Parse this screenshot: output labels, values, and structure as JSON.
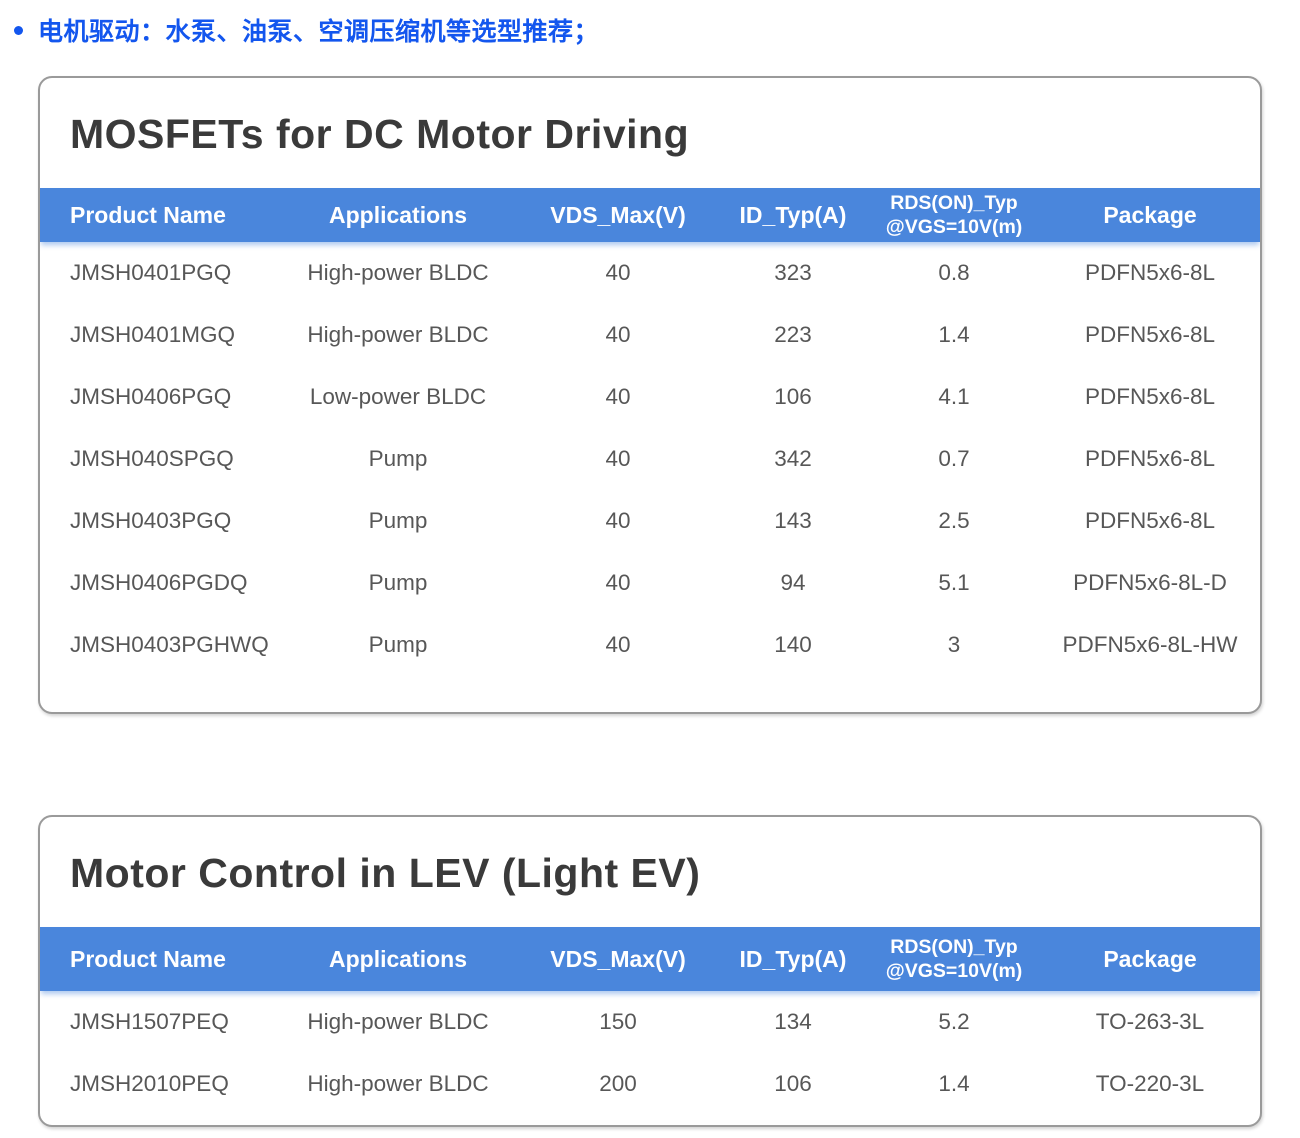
{
  "page": {
    "bullet_item": {
      "text": "电机驱动：水泵、油泵、空调压缩机等选型推荐；"
    },
    "colors": {
      "accent_blue": "#1356ee",
      "table_header_blue": "#4a86dc",
      "title_text": "#3a3a3a",
      "cell_text": "#575757"
    }
  },
  "tables": [
    {
      "title": "MOSFETs for DC Motor Driving",
      "columns": [
        {
          "label": "Product Name"
        },
        {
          "label": "Applications"
        },
        {
          "label": "VDS_Max(V)"
        },
        {
          "label": "ID_Typ(A)"
        },
        {
          "label": "RDS(ON)_Typ",
          "sublabel": "@VGS=10V(m)"
        },
        {
          "label": "Package"
        }
      ],
      "rows": [
        {
          "product": "JMSH0401PGQ",
          "application": "High-power BLDC",
          "vds_max_v": "40",
          "id_typ_a": "323",
          "rds_on_typ": "0.8",
          "package": "PDFN5x6-8L"
        },
        {
          "product": "JMSH0401MGQ",
          "application": "High-power BLDC",
          "vds_max_v": "40",
          "id_typ_a": "223",
          "rds_on_typ": "1.4",
          "package": "PDFN5x6-8L"
        },
        {
          "product": "JMSH0406PGQ",
          "application": "Low-power BLDC",
          "vds_max_v": "40",
          "id_typ_a": "106",
          "rds_on_typ": "4.1",
          "package": "PDFN5x6-8L"
        },
        {
          "product": "JMSH040SPGQ",
          "application": "Pump",
          "vds_max_v": "40",
          "id_typ_a": "342",
          "rds_on_typ": "0.7",
          "package": "PDFN5x6-8L"
        },
        {
          "product": "JMSH0403PGQ",
          "application": "Pump",
          "vds_max_v": "40",
          "id_typ_a": "143",
          "rds_on_typ": "2.5",
          "package": "PDFN5x6-8L"
        },
        {
          "product": "JMSH0406PGDQ",
          "application": "Pump",
          "vds_max_v": "40",
          "id_typ_a": "94",
          "rds_on_typ": "5.1",
          "package": "PDFN5x6-8L-D"
        },
        {
          "product": "JMSH0403PGHWQ",
          "application": "Pump",
          "vds_max_v": "40",
          "id_typ_a": "140",
          "rds_on_typ": "3",
          "package": "PDFN5x6-8L-HW"
        }
      ]
    },
    {
      "title": "Motor Control in LEV (Light EV)",
      "columns": [
        {
          "label": "Product Name"
        },
        {
          "label": "Applications"
        },
        {
          "label": "VDS_Max(V)"
        },
        {
          "label": "ID_Typ(A)"
        },
        {
          "label": "RDS(ON)_Typ",
          "sublabel": "@VGS=10V(m)"
        },
        {
          "label": "Package"
        }
      ],
      "rows": [
        {
          "product": "JMSH1507PEQ",
          "application": "High-power BLDC",
          "vds_max_v": "150",
          "id_typ_a": "134",
          "rds_on_typ": "5.2",
          "package": "TO-263-3L"
        },
        {
          "product": "JMSH2010PEQ",
          "application": "High-power BLDC",
          "vds_max_v": "200",
          "id_typ_a": "106",
          "rds_on_typ": "1.4",
          "package": "TO-220-3L"
        }
      ]
    }
  ]
}
